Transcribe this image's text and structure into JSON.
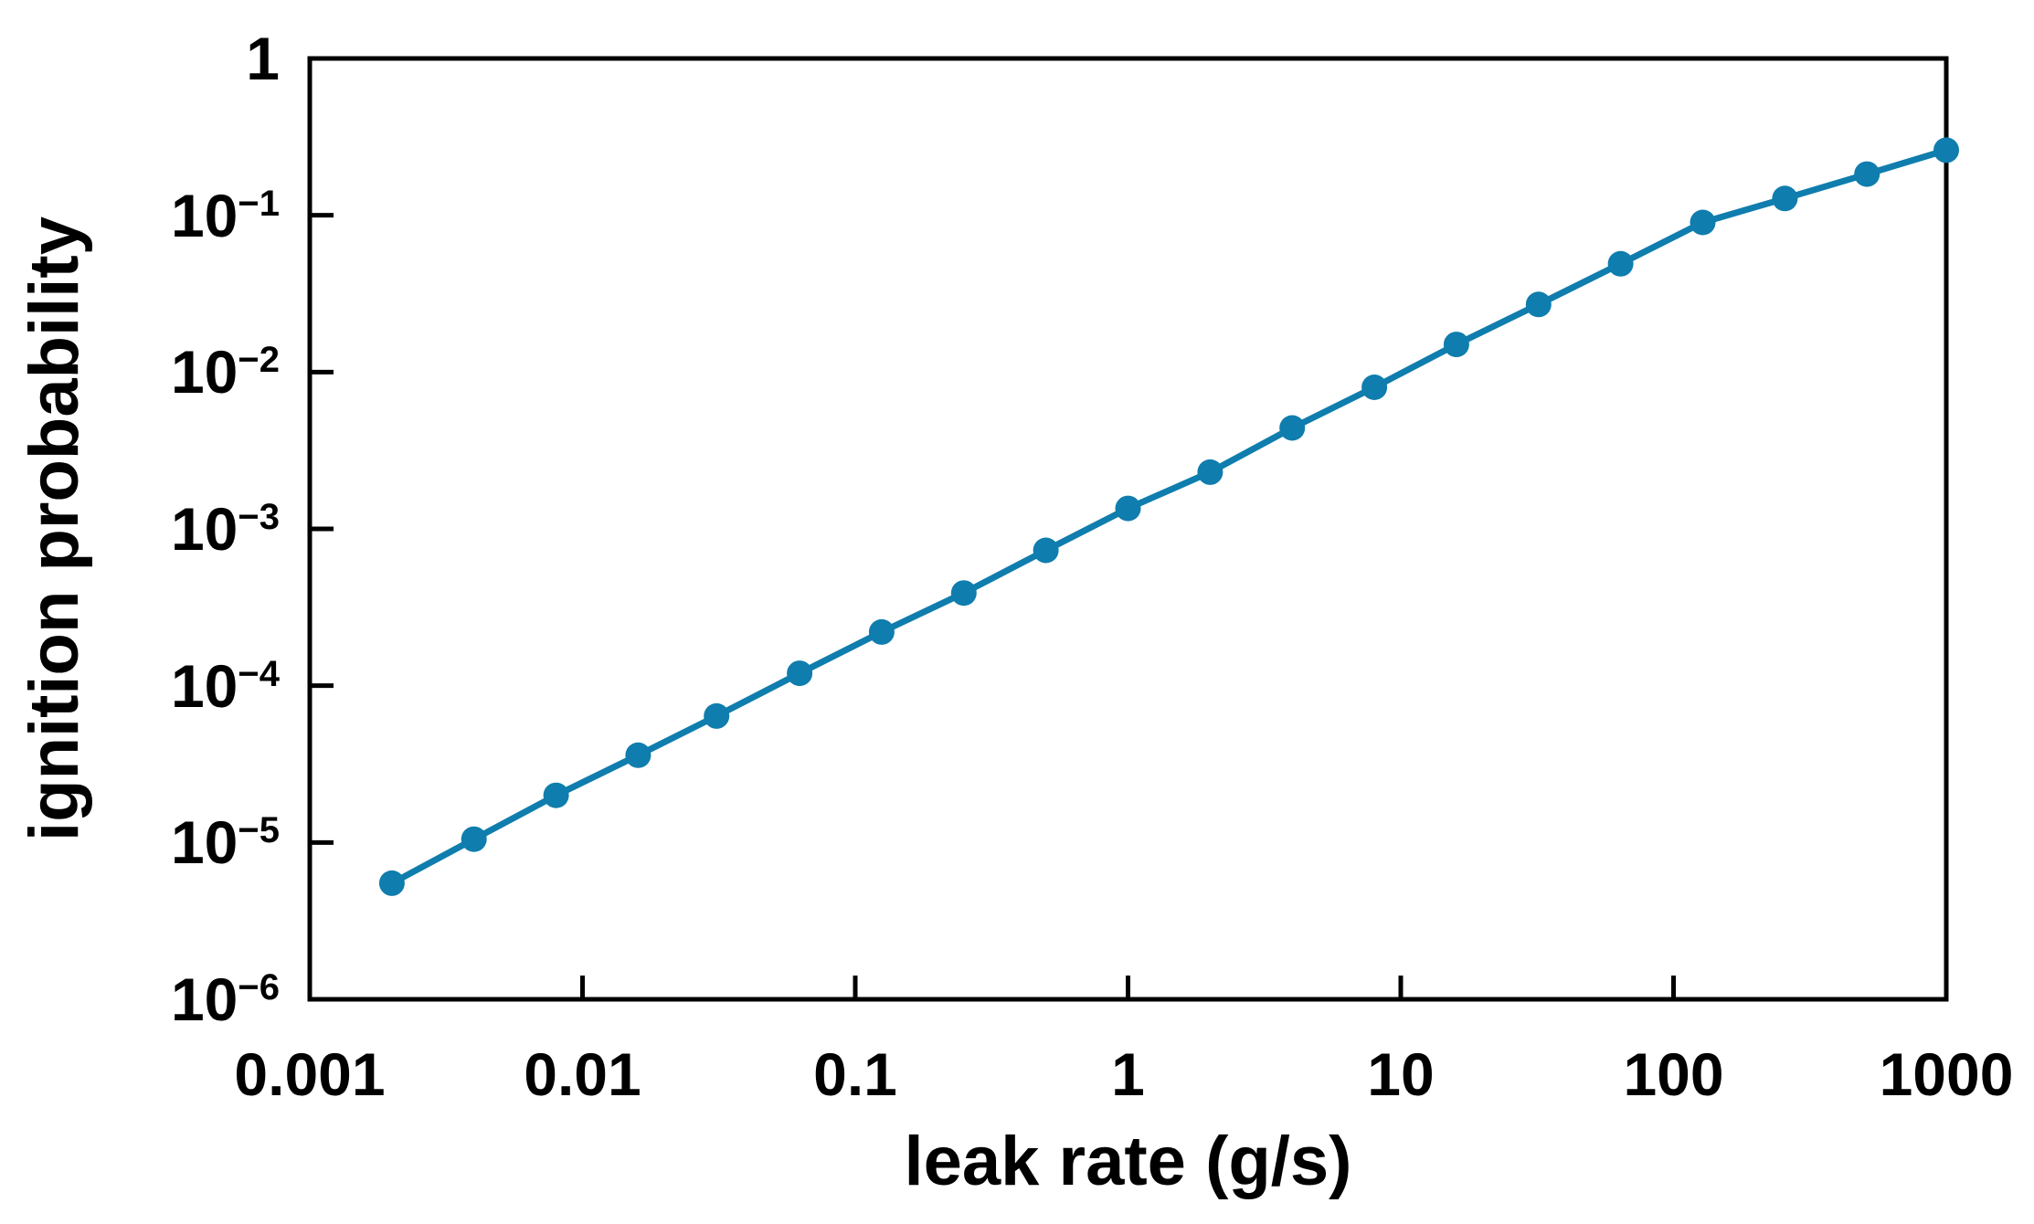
{
  "chart_data": {
    "type": "line",
    "title": "",
    "xlabel": "leak rate (g/s)",
    "ylabel": "ignition probability",
    "xscale": "log",
    "yscale": "log",
    "xlim": [
      0.001,
      1000
    ],
    "ylim": [
      1e-06,
      1
    ],
    "grid": false,
    "legend": null,
    "series": [
      {
        "name": "ignition probability",
        "color": "#0f7dad",
        "marker": "circle",
        "x": [
          0.002,
          0.004,
          0.008,
          0.016,
          0.031,
          0.0625,
          0.125,
          0.25,
          0.5,
          1,
          2,
          4,
          8,
          16,
          32,
          64,
          128,
          256,
          512,
          1000
        ],
        "y": [
          5.5e-06,
          1.05e-05,
          2e-05,
          3.6e-05,
          6.4e-05,
          0.00012,
          0.00022,
          0.00039,
          0.00073,
          0.00135,
          0.0023,
          0.0044,
          0.008,
          0.015,
          0.027,
          0.049,
          0.09,
          0.128,
          0.183,
          0.26
        ]
      }
    ],
    "x_ticks": [
      {
        "value": 0.001,
        "label": "0.001"
      },
      {
        "value": 0.01,
        "label": "0.01"
      },
      {
        "value": 0.1,
        "label": "0.1"
      },
      {
        "value": 1,
        "label": "1"
      },
      {
        "value": 10,
        "label": "10"
      },
      {
        "value": 100,
        "label": "100"
      },
      {
        "value": 1000,
        "label": "1000"
      }
    ],
    "y_ticks": [
      {
        "value": 1,
        "base": "1",
        "exp": ""
      },
      {
        "value": 0.1,
        "base": "10",
        "exp": "−1"
      },
      {
        "value": 0.01,
        "base": "10",
        "exp": "−2"
      },
      {
        "value": 0.001,
        "base": "10",
        "exp": "−3"
      },
      {
        "value": 0.0001,
        "base": "10",
        "exp": "−4"
      },
      {
        "value": 1e-05,
        "base": "10",
        "exp": "−5"
      },
      {
        "value": 1e-06,
        "base": "10",
        "exp": "−6"
      }
    ],
    "axis_color": "#000000",
    "background_color": "#ffffff"
  }
}
